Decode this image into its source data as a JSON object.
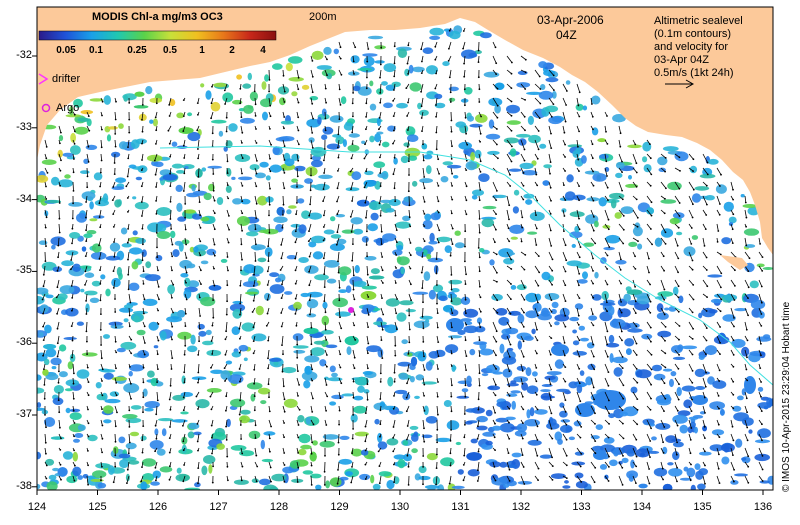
{
  "map": {
    "date": "03-Apr-2006",
    "time": "04Z",
    "isobath_label": "200m",
    "colorbar": {
      "title": "MODIS Chl-a mg/m3 OC3",
      "ticks": [
        "0.05",
        "0.1",
        "0.25",
        "0.5",
        "1",
        "2",
        "4"
      ],
      "colors": [
        "#2a1a8a",
        "#1f52d8",
        "#1aa0e8",
        "#20c8b0",
        "#5ad24a",
        "#c8e03a",
        "#f0c020",
        "#e8781a",
        "#c8281a",
        "#8a1010"
      ]
    },
    "legend": {
      "drifter_label": "drifter",
      "argo_label": "Argo",
      "drifter_color": "#ff33ff",
      "argo_color": "#dd22dd"
    },
    "info_box": {
      "lines": [
        "Altimetric sealevel",
        "(0.1m contours)",
        "and velocity for",
        "03-Apr 04Z",
        "0.5m/s (1kt 24h)"
      ]
    },
    "x_ticks": [
      "124",
      "125",
      "126",
      "127",
      "128",
      "129",
      "130",
      "131",
      "132",
      "133",
      "134",
      "135",
      "136"
    ],
    "y_ticks": [
      "-32",
      "-33",
      "-34",
      "-35",
      "-36",
      "-37",
      "-38"
    ],
    "credit": "© IMOS 10-Apr-2015 23:29:04 Hobart time",
    "land_color": "#fcc99a",
    "contour_color": "#40e0e0"
  }
}
